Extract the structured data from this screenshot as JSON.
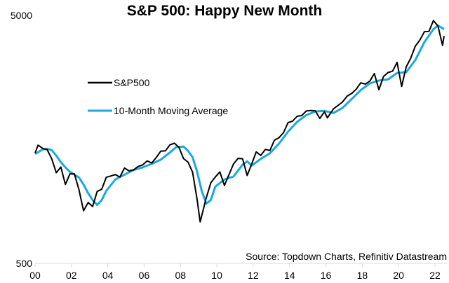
{
  "chart_data": {
    "type": "line",
    "title": "S&P 500: Happy New Month",
    "source": "Source: Topdown Charts, Refinitiv Datastream",
    "y_scale": "log",
    "ylim": [
      500,
      5000
    ],
    "y_ticks": [
      "5000",
      "500"
    ],
    "y_tick_values": [
      5000,
      500
    ],
    "xlim": [
      2000,
      2022.6
    ],
    "x_ticks": [
      "00",
      "02",
      "04",
      "06",
      "08",
      "10",
      "12",
      "14",
      "16",
      "18",
      "20",
      "22"
    ],
    "x_tick_values": [
      2000,
      2002,
      2004,
      2006,
      2008,
      2010,
      2012,
      2014,
      2016,
      2018,
      2020,
      2022
    ],
    "grid": false,
    "legend_placement": "top-left",
    "series": [
      {
        "name": "S&P500",
        "color": "#000000",
        "x": [
          "2000-01",
          "2000-03",
          "2000-06",
          "2000-09",
          "2000-12",
          "2001-03",
          "2001-06",
          "2001-09",
          "2001-12",
          "2002-03",
          "2002-06",
          "2002-09",
          "2002-12",
          "2003-03",
          "2003-06",
          "2003-09",
          "2003-12",
          "2004-03",
          "2004-06",
          "2004-09",
          "2004-12",
          "2005-03",
          "2005-06",
          "2005-09",
          "2005-12",
          "2006-03",
          "2006-06",
          "2006-09",
          "2006-12",
          "2007-03",
          "2007-06",
          "2007-09",
          "2007-12",
          "2008-03",
          "2008-06",
          "2008-09",
          "2008-12",
          "2009-02",
          "2009-06",
          "2009-09",
          "2009-12",
          "2010-03",
          "2010-06",
          "2010-09",
          "2010-12",
          "2011-03",
          "2011-06",
          "2011-09",
          "2011-12",
          "2012-03",
          "2012-06",
          "2012-09",
          "2012-12",
          "2013-03",
          "2013-06",
          "2013-09",
          "2013-12",
          "2014-03",
          "2014-06",
          "2014-09",
          "2014-12",
          "2015-03",
          "2015-06",
          "2015-09",
          "2015-12",
          "2016-02",
          "2016-06",
          "2016-09",
          "2016-12",
          "2017-03",
          "2017-06",
          "2017-09",
          "2017-12",
          "2018-03",
          "2018-06",
          "2018-09",
          "2018-12",
          "2019-03",
          "2019-06",
          "2019-09",
          "2019-12",
          "2020-03",
          "2020-06",
          "2020-09",
          "2020-12",
          "2021-03",
          "2021-06",
          "2021-09",
          "2021-12",
          "2022-03",
          "2022-06",
          "2022-07"
        ],
        "values": [
          1394,
          1499,
          1455,
          1436,
          1320,
          1160,
          1224,
          1041,
          1148,
          1147,
          990,
          815,
          880,
          848,
          975,
          996,
          1112,
          1126,
          1141,
          1115,
          1212,
          1181,
          1191,
          1229,
          1248,
          1295,
          1270,
          1336,
          1418,
          1421,
          1503,
          1527,
          1468,
          1323,
          1280,
          1166,
          903,
          735,
          919,
          1057,
          1115,
          1169,
          1031,
          1141,
          1258,
          1326,
          1321,
          1131,
          1258,
          1408,
          1362,
          1441,
          1426,
          1569,
          1606,
          1682,
          1848,
          1872,
          1960,
          1972,
          2059,
          2068,
          2063,
          1920,
          2044,
          1932,
          2099,
          2168,
          2239,
          2363,
          2423,
          2519,
          2674,
          2641,
          2718,
          2914,
          2507,
          2834,
          2942,
          2977,
          3231,
          2585,
          3100,
          3363,
          3756,
          3973,
          4298,
          4308,
          4766,
          4530,
          3785,
          4130
        ]
      },
      {
        "name": "10-Month Moving Average",
        "color": "#1ba9dd",
        "x": [
          "2000-01",
          "2000-06",
          "2000-09",
          "2000-12",
          "2001-03",
          "2001-06",
          "2001-09",
          "2001-12",
          "2002-03",
          "2002-06",
          "2002-09",
          "2002-12",
          "2003-03",
          "2003-06",
          "2003-09",
          "2003-12",
          "2004-06",
          "2004-12",
          "2005-06",
          "2005-12",
          "2006-06",
          "2006-12",
          "2007-06",
          "2007-10",
          "2008-03",
          "2008-06",
          "2008-09",
          "2008-12",
          "2009-03",
          "2009-06",
          "2009-09",
          "2009-12",
          "2010-06",
          "2010-12",
          "2011-06",
          "2011-09",
          "2011-12",
          "2012-06",
          "2012-12",
          "2013-06",
          "2013-12",
          "2014-06",
          "2014-12",
          "2015-06",
          "2015-12",
          "2016-06",
          "2016-12",
          "2017-06",
          "2017-12",
          "2018-06",
          "2018-12",
          "2019-06",
          "2019-12",
          "2020-06",
          "2020-12",
          "2021-06",
          "2021-12",
          "2022-03",
          "2022-07"
        ],
        "values": [
          1380,
          1440,
          1450,
          1430,
          1360,
          1280,
          1220,
          1170,
          1140,
          1110,
          1040,
          960,
          900,
          860,
          900,
          980,
          1090,
          1140,
          1190,
          1220,
          1260,
          1310,
          1400,
          1470,
          1480,
          1420,
          1340,
          1170,
          980,
          870,
          900,
          1020,
          1090,
          1120,
          1250,
          1290,
          1240,
          1320,
          1390,
          1520,
          1700,
          1860,
          1980,
          2050,
          2060,
          2020,
          2120,
          2300,
          2500,
          2660,
          2730,
          2760,
          2930,
          2950,
          3300,
          3900,
          4400,
          4550,
          4400
        ]
      }
    ]
  }
}
